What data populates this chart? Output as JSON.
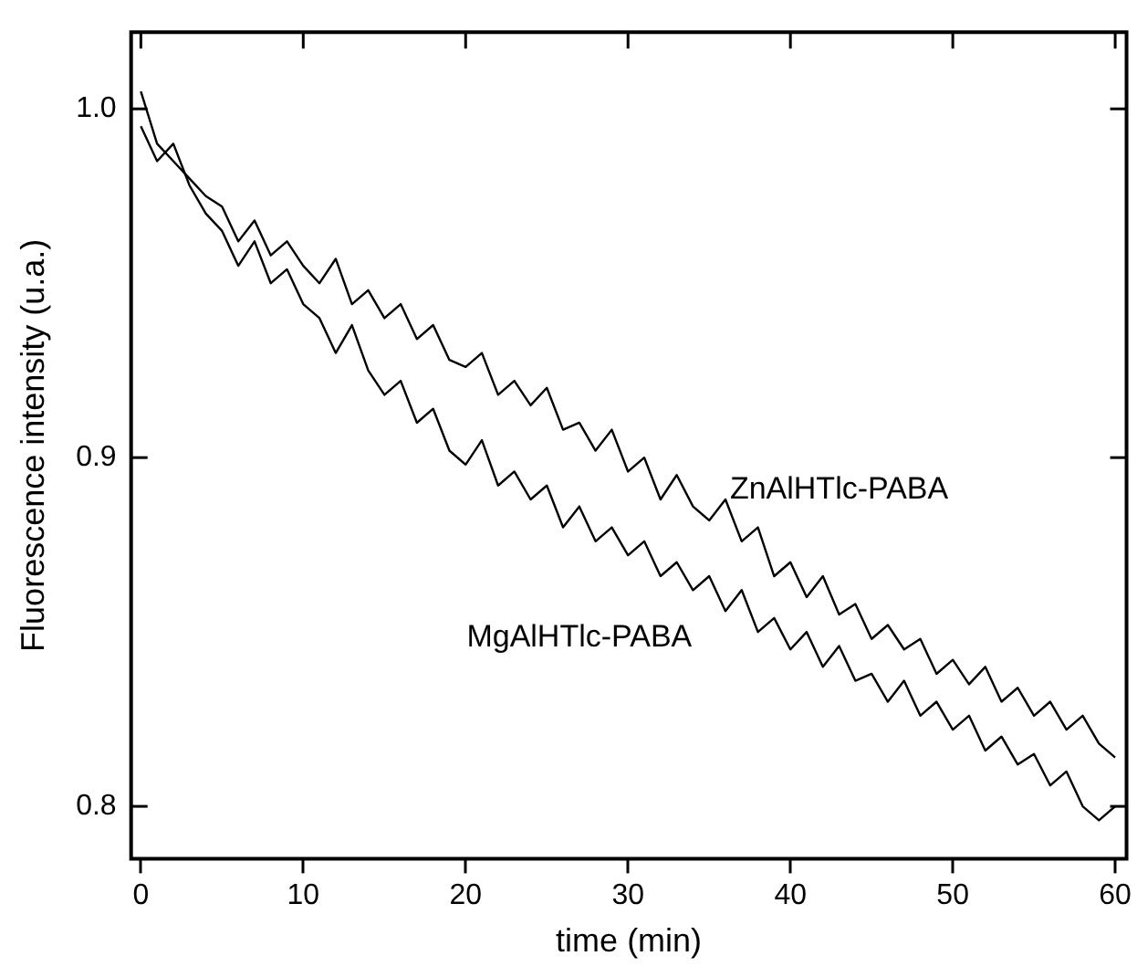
{
  "chart_data": {
    "type": "line",
    "xlabel": "time (min)",
    "ylabel": "Fluorescence intensity (u.a.)",
    "x": [
      0,
      1,
      2,
      3,
      4,
      5,
      6,
      7,
      8,
      9,
      10,
      11,
      12,
      13,
      14,
      15,
      16,
      17,
      18,
      19,
      20,
      21,
      22,
      23,
      24,
      25,
      26,
      27,
      28,
      29,
      30,
      31,
      32,
      33,
      34,
      35,
      36,
      37,
      38,
      39,
      40,
      41,
      42,
      43,
      44,
      45,
      46,
      47,
      48,
      49,
      50,
      51,
      52,
      53,
      54,
      55,
      56,
      57,
      58,
      59,
      60
    ],
    "xlim": [
      -0.6,
      60.7
    ],
    "xticks": [
      0,
      10,
      20,
      30,
      40,
      50,
      60
    ],
    "ylim": [
      0.785,
      1.022
    ],
    "yticks": [
      {
        "value": 0.8,
        "label": "0.8"
      },
      {
        "value": 0.9,
        "label": "0.9"
      },
      {
        "value": 1.0,
        "label": "1.0"
      }
    ],
    "marker": "none",
    "line_style": "solid",
    "series": [
      {
        "name": "ZnAlHTlc-PABA",
        "color": "#000000",
        "values": [
          1.005,
          0.99,
          0.985,
          0.98,
          0.975,
          0.972,
          0.962,
          0.968,
          0.958,
          0.962,
          0.955,
          0.95,
          0.957,
          0.944,
          0.948,
          0.94,
          0.944,
          0.934,
          0.938,
          0.928,
          0.926,
          0.93,
          0.918,
          0.922,
          0.915,
          0.92,
          0.908,
          0.91,
          0.902,
          0.908,
          0.896,
          0.9,
          0.888,
          0.895,
          0.886,
          0.882,
          0.888,
          0.876,
          0.88,
          0.866,
          0.87,
          0.86,
          0.866,
          0.855,
          0.858,
          0.848,
          0.852,
          0.845,
          0.848,
          0.838,
          0.842,
          0.835,
          0.84,
          0.83,
          0.834,
          0.826,
          0.83,
          0.822,
          0.826,
          0.818,
          0.814
        ]
      },
      {
        "name": "MgAlHTlc-PABA",
        "color": "#000000",
        "values": [
          0.995,
          0.985,
          0.99,
          0.978,
          0.97,
          0.965,
          0.955,
          0.962,
          0.95,
          0.954,
          0.944,
          0.94,
          0.93,
          0.938,
          0.925,
          0.918,
          0.922,
          0.91,
          0.914,
          0.902,
          0.898,
          0.905,
          0.892,
          0.896,
          0.888,
          0.892,
          0.88,
          0.886,
          0.876,
          0.88,
          0.872,
          0.876,
          0.866,
          0.87,
          0.862,
          0.866,
          0.856,
          0.862,
          0.85,
          0.854,
          0.845,
          0.85,
          0.84,
          0.846,
          0.836,
          0.838,
          0.83,
          0.836,
          0.826,
          0.83,
          0.822,
          0.826,
          0.816,
          0.82,
          0.812,
          0.815,
          0.806,
          0.81,
          0.8,
          0.796,
          0.8
        ]
      }
    ]
  }
}
